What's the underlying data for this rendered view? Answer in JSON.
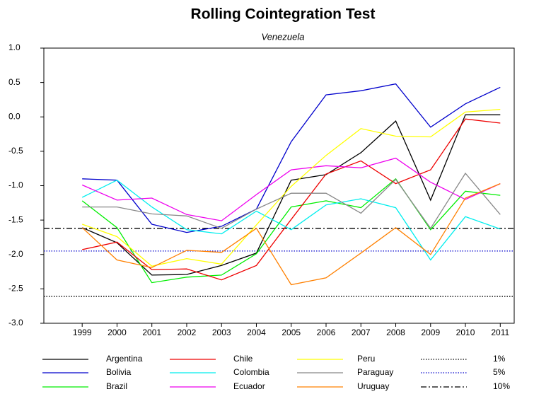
{
  "chart_data": {
    "type": "line",
    "title": "Rolling Cointegration Test",
    "subtitle": "Venezuela",
    "x": [
      1999,
      2000,
      2001,
      2002,
      2003,
      2004,
      2005,
      2006,
      2007,
      2008,
      2009,
      2010,
      2011
    ],
    "xlim": [
      1997.9,
      2011.4
    ],
    "xticks": [
      1999,
      2000,
      2001,
      2002,
      2003,
      2004,
      2005,
      2006,
      2007,
      2008,
      2009,
      2010,
      2011
    ],
    "ylim": [
      -3,
      1
    ],
    "yticks": [
      {
        "value": -3,
        "label": "-3.0"
      },
      -2.5,
      {
        "value": -2,
        "label": "-2.0"
      },
      -1.5,
      {
        "value": -1,
        "label": "-1.0"
      },
      -0.5,
      {
        "value": 0,
        "label": "0.0"
      },
      0.5,
      {
        "value": 1,
        "label": "1.0"
      }
    ],
    "series": [
      {
        "name": "Argentina",
        "color": "#000000",
        "values": [
          -1.61,
          -1.83,
          -2.3,
          -2.29,
          -2.16,
          -1.98,
          -0.92,
          -0.84,
          -0.52,
          -0.06,
          -1.21,
          0.03,
          0.03
        ]
      },
      {
        "name": "Bolivia",
        "color": "#0000cc",
        "values": [
          -0.9,
          -0.92,
          -1.56,
          -1.68,
          -1.59,
          -1.34,
          -0.36,
          0.32,
          0.38,
          0.48,
          -0.15,
          0.19,
          0.43
        ]
      },
      {
        "name": "Brazil",
        "color": "#00ee00",
        "values": [
          -1.22,
          -1.61,
          -2.41,
          -2.33,
          -2.3,
          -1.99,
          -1.31,
          -1.22,
          -1.32,
          -0.9,
          -1.64,
          -1.08,
          -1.14
        ]
      },
      {
        "name": "Chile",
        "color": "#ee0000",
        "values": [
          -1.93,
          -1.82,
          -2.22,
          -2.21,
          -2.37,
          -2.16,
          -1.49,
          -0.83,
          -0.64,
          -0.97,
          -0.77,
          -0.03,
          -0.09
        ]
      },
      {
        "name": "Colombia",
        "color": "#00eeee",
        "values": [
          -1.17,
          -0.92,
          -1.31,
          -1.64,
          -1.7,
          -1.37,
          -1.64,
          -1.28,
          -1.19,
          -1.32,
          -2.08,
          -1.45,
          -1.63
        ]
      },
      {
        "name": "Ecuador",
        "color": "#ee00ee",
        "values": [
          -0.99,
          -1.21,
          -1.18,
          -1.42,
          -1.51,
          -1.13,
          -0.77,
          -0.71,
          -0.74,
          -0.6,
          -0.95,
          -1.2,
          -0.97
        ]
      },
      {
        "name": "Peru",
        "color": "#ffff00",
        "values": [
          -1.56,
          -1.74,
          -2.17,
          -2.06,
          -2.14,
          -1.57,
          -1.01,
          -0.56,
          -0.17,
          -0.28,
          -0.29,
          0.07,
          0.11
        ]
      },
      {
        "name": "Paraguay",
        "color": "#888888",
        "values": [
          -1.31,
          -1.31,
          -1.41,
          -1.44,
          -1.62,
          -1.34,
          -1.11,
          -1.11,
          -1.4,
          -0.91,
          -1.62,
          -0.82,
          -1.42
        ]
      },
      {
        "name": "Uruguay",
        "color": "#ff8000",
        "values": [
          -1.61,
          -2.08,
          -2.19,
          -1.94,
          -1.97,
          -1.62,
          -2.44,
          -2.34,
          -1.98,
          -1.61,
          -2.0,
          -1.18,
          -0.97
        ]
      }
    ],
    "reference_lines": [
      {
        "name": "1%",
        "value": -2.61,
        "color": "#000000",
        "dash": "dotted"
      },
      {
        "name": "5%",
        "value": -1.95,
        "color": "#0000cc",
        "dash": "dotted"
      },
      {
        "name": "10%",
        "value": -1.62,
        "color": "#000000",
        "dash": "dashdot"
      }
    ]
  }
}
